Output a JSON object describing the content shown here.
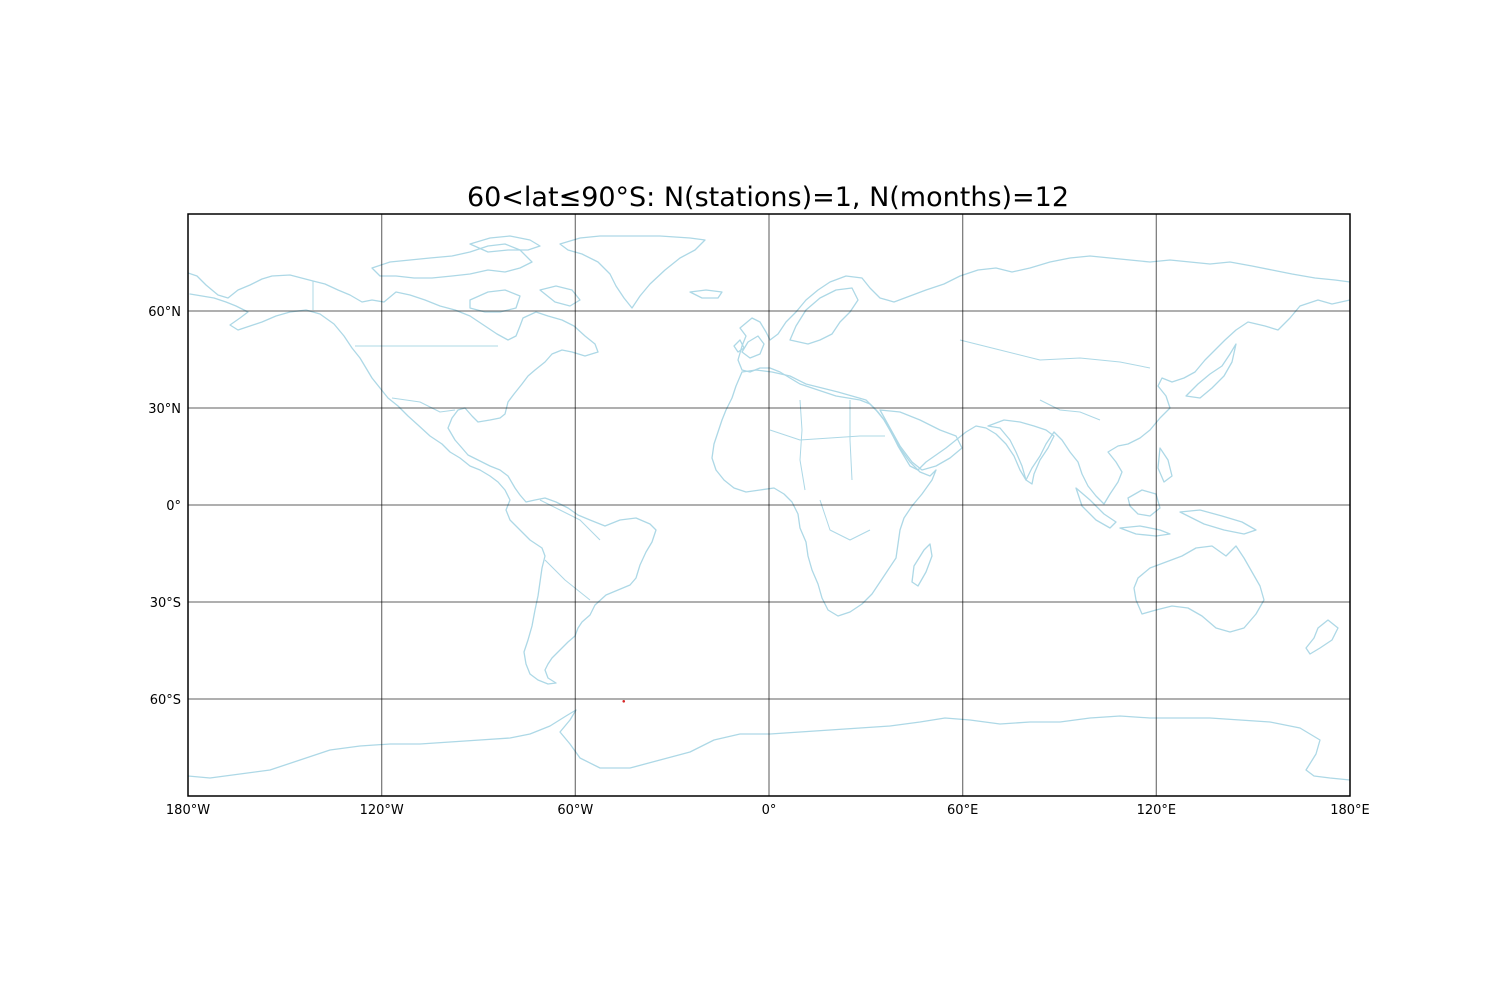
{
  "chart_data": {
    "type": "scatter",
    "title": "60<lat≤90°S: N(stations)=1, N(months)=12",
    "projection": "PlateCarree",
    "xlim": [
      -180,
      180
    ],
    "ylim": [
      -90,
      90
    ],
    "grid": true,
    "x_ticks": [
      -180,
      -120,
      -60,
      0,
      60,
      120,
      180
    ],
    "x_tick_labels": [
      "180°W",
      "120°W",
      "60°W",
      "0°",
      "60°E",
      "120°E",
      "180°E"
    ],
    "y_ticks": [
      60,
      30,
      0,
      -30,
      -60
    ],
    "y_tick_labels": [
      "60°N",
      "30°N",
      "0°",
      "30°S",
      "60°S"
    ],
    "coastline_color": "#add8e6",
    "border_color": "#add8e6",
    "grid_color": "#808080",
    "marker_color": "#d62728",
    "points": [
      {
        "lon": -45,
        "lat": -60.7
      }
    ]
  }
}
